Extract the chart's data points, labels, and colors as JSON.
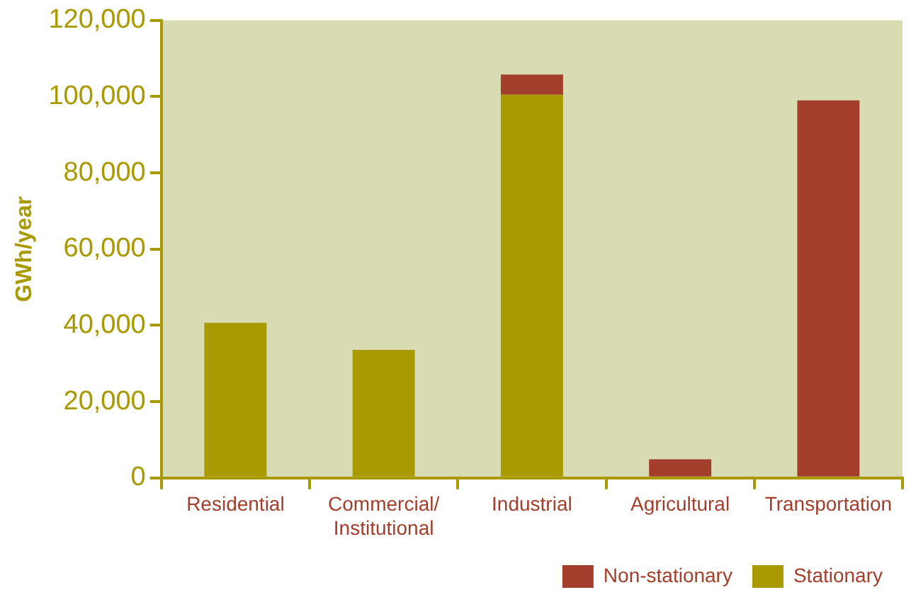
{
  "chart_data": {
    "type": "bar",
    "ylabel": "GWh/year",
    "categories": [
      "Residential",
      "Commercial/Institutional",
      "Industrial",
      "Agricultural",
      "Transportation"
    ],
    "stacked": true,
    "series": [
      {
        "name": "Stationary",
        "color": "#a89a00",
        "values": [
          40700,
          33600,
          100500,
          null,
          null
        ]
      },
      {
        "name": "Non-stationary",
        "color": "#a33e2c",
        "values": [
          null,
          null,
          5300,
          4900,
          99000
        ]
      }
    ],
    "ylim": [
      0,
      120000
    ],
    "yticks": [
      0,
      {
        "value": 20000,
        "label": "20,000"
      },
      {
        "value": 40000,
        "label": "40,000"
      },
      {
        "value": 60000,
        "label": "60,000"
      },
      {
        "value": 80000,
        "label": "80,000"
      },
      {
        "value": 100000,
        "label": "100,000"
      },
      {
        "value": 120000,
        "label": "120,000"
      }
    ],
    "grid": false,
    "legend": "bottom"
  }
}
